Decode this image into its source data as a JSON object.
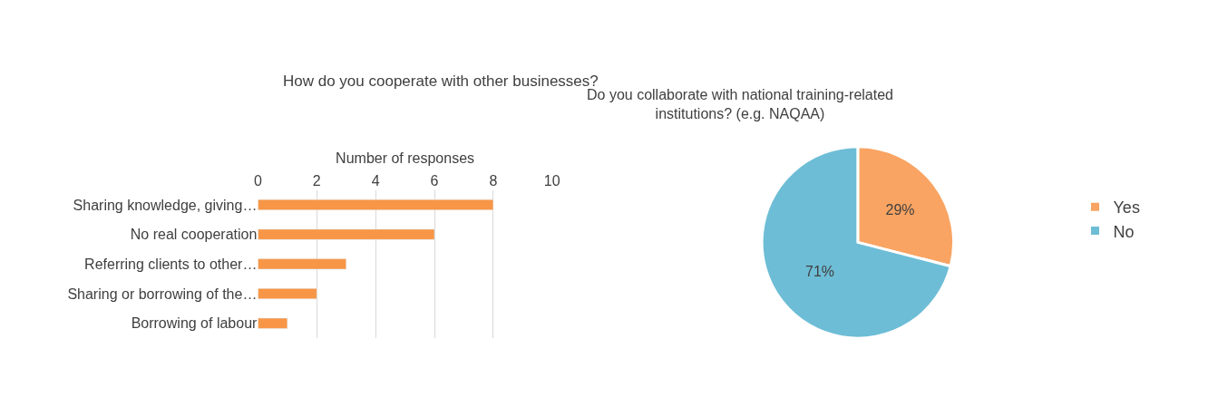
{
  "chart_data": [
    {
      "type": "bar",
      "orientation": "horizontal",
      "title": "How do you cooperate with other businesses?",
      "xlabel": "Number of responses",
      "categories": [
        "Sharing knowledge, giving…",
        "No real cooperation",
        "Referring clients to other…",
        "Sharing or borrowing of the…",
        "Borrowing of labour"
      ],
      "values": [
        8,
        6,
        3,
        2,
        1
      ],
      "color": "#f79646",
      "xlim": [
        0,
        10
      ],
      "xticks": [
        0,
        2,
        4,
        6,
        8,
        10
      ],
      "grid": "x",
      "legend": false
    },
    {
      "type": "pie",
      "title": "Do you collaborate with national training-related\ninstitutions? (e.g. NAQAA)",
      "categories": [
        "Yes",
        "No"
      ],
      "values": [
        29,
        71
      ],
      "colors": [
        "#f9a462",
        "#6dbdd6"
      ],
      "value_labels": [
        "29%",
        "71%"
      ],
      "legend": "right"
    }
  ]
}
